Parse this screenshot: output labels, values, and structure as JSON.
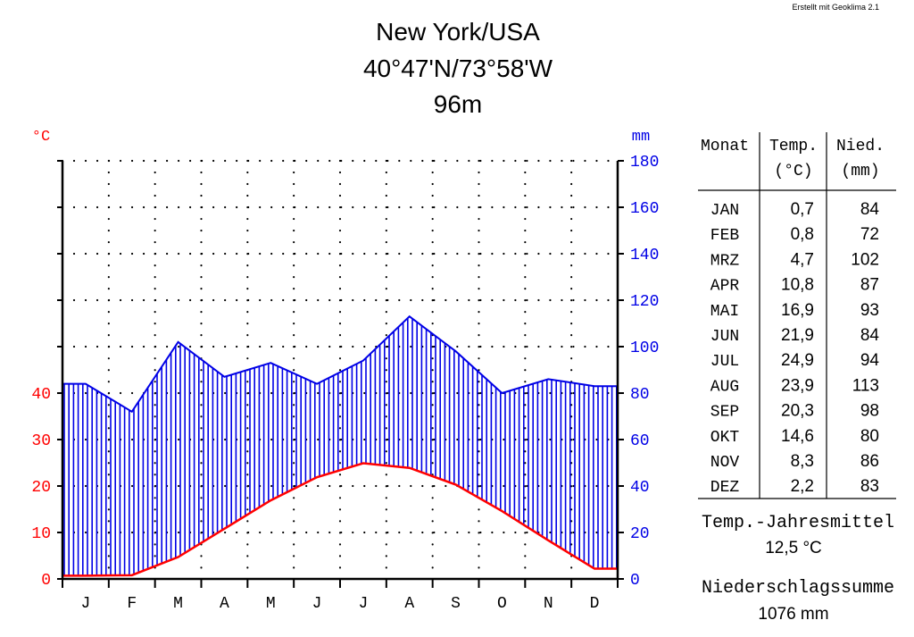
{
  "credit": "Erstellt mit Geoklima 2.1",
  "header": {
    "station": "New York/USA",
    "coords": "40°47'N/73°58'W",
    "elevation": "96m"
  },
  "colors": {
    "temperature": "#ff0000",
    "precipitation": "#0000e6",
    "axis": "#000000"
  },
  "chart_data": {
    "type": "line",
    "x": [
      "J",
      "F",
      "M",
      "A",
      "M",
      "J",
      "J",
      "A",
      "S",
      "O",
      "N",
      "D"
    ],
    "series": [
      {
        "values": [
          0.7,
          0.8,
          4.7,
          10.8,
          16.9,
          21.9,
          24.9,
          23.9,
          20.3,
          14.6,
          8.3,
          2.2
        ]
      },
      {
        "values": [
          84,
          72,
          102,
          87,
          93,
          84,
          94,
          113,
          98,
          80,
          86,
          83
        ]
      }
    ],
    "y_left": {
      "unit": "°C",
      "ticks": [
        "0",
        "10",
        "20",
        "30",
        "40"
      ],
      "range": [
        0,
        90
      ]
    },
    "y_right": {
      "unit": "mm",
      "ticks": [
        "0",
        "20",
        "40",
        "60",
        "80",
        "100",
        "120",
        "140",
        "160",
        "180"
      ],
      "range": [
        0,
        180
      ]
    },
    "grid": true
  },
  "table": {
    "headers": {
      "month": "Monat",
      "temp_line1": "Temp.",
      "temp_line2": "(°C)",
      "prec_line1": "Nied.",
      "prec_line2": "(mm)"
    },
    "rows": [
      {
        "month": "JAN",
        "temp": "0,7",
        "prec": "84"
      },
      {
        "month": "FEB",
        "temp": "0,8",
        "prec": "72"
      },
      {
        "month": "MRZ",
        "temp": "4,7",
        "prec": "102"
      },
      {
        "month": "APR",
        "temp": "10,8",
        "prec": "87"
      },
      {
        "month": "MAI",
        "temp": "16,9",
        "prec": "93"
      },
      {
        "month": "JUN",
        "temp": "21,9",
        "prec": "84"
      },
      {
        "month": "JUL",
        "temp": "24,9",
        "prec": "94"
      },
      {
        "month": "AUG",
        "temp": "23,9",
        "prec": "113"
      },
      {
        "month": "SEP",
        "temp": "20,3",
        "prec": "98"
      },
      {
        "month": "OKT",
        "temp": "14,6",
        "prec": "80"
      },
      {
        "month": "NOV",
        "temp": "8,3",
        "prec": "86"
      },
      {
        "month": "DEZ",
        "temp": "2,2",
        "prec": "83"
      }
    ]
  },
  "summary": {
    "annual_temp_label": "Temp.-Jahresmittel",
    "annual_temp_value": "12,5 °C",
    "annual_prec_label": "Niederschlagssumme",
    "annual_prec_value": "1076 mm"
  }
}
